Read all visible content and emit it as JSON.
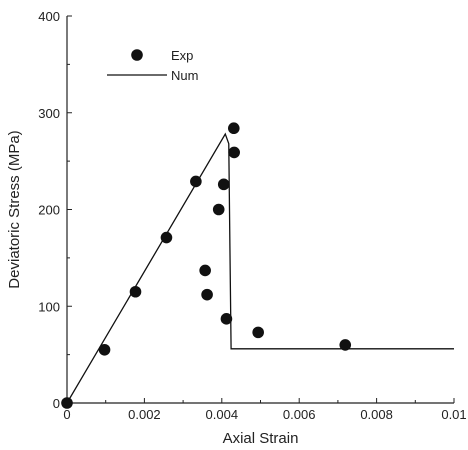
{
  "chart_data": {
    "type": "scatter",
    "xlabel": "Axial Strain",
    "ylabel": "Deviatoric Stress (MPa)",
    "xlim": [
      0,
      0.01
    ],
    "ylim": [
      0,
      400
    ],
    "x_ticks": [
      "0",
      "0.002",
      "0.004",
      "0.006",
      "0.008",
      "0.01"
    ],
    "y_ticks": [
      "0",
      "100",
      "200",
      "300",
      "400"
    ],
    "grid": false,
    "legend_position": "top-left",
    "series": [
      {
        "name": "Exp",
        "type": "scatter",
        "color": "#111111",
        "points": [
          {
            "x": 0.0,
            "y": 0
          },
          {
            "x": 0.00097,
            "y": 55
          },
          {
            "x": 0.00177,
            "y": 115
          },
          {
            "x": 0.00257,
            "y": 171
          },
          {
            "x": 0.00333,
            "y": 229
          },
          {
            "x": 0.00357,
            "y": 137
          },
          {
            "x": 0.00362,
            "y": 112
          },
          {
            "x": 0.00392,
            "y": 200
          },
          {
            "x": 0.00405,
            "y": 226
          },
          {
            "x": 0.00412,
            "y": 87
          },
          {
            "x": 0.00431,
            "y": 284
          },
          {
            "x": 0.00432,
            "y": 259
          },
          {
            "x": 0.00494,
            "y": 73
          },
          {
            "x": 0.00719,
            "y": 60
          }
        ]
      },
      {
        "name": "Num",
        "type": "line",
        "color": "#111111",
        "points": [
          {
            "x": 0.0,
            "y": 0
          },
          {
            "x": 0.00409,
            "y": 278
          },
          {
            "x": 0.00418,
            "y": 268
          },
          {
            "x": 0.00421,
            "y": 160
          },
          {
            "x": 0.00424,
            "y": 56
          },
          {
            "x": 0.00425,
            "y": 56
          },
          {
            "x": 0.01,
            "y": 56
          }
        ]
      }
    ]
  }
}
